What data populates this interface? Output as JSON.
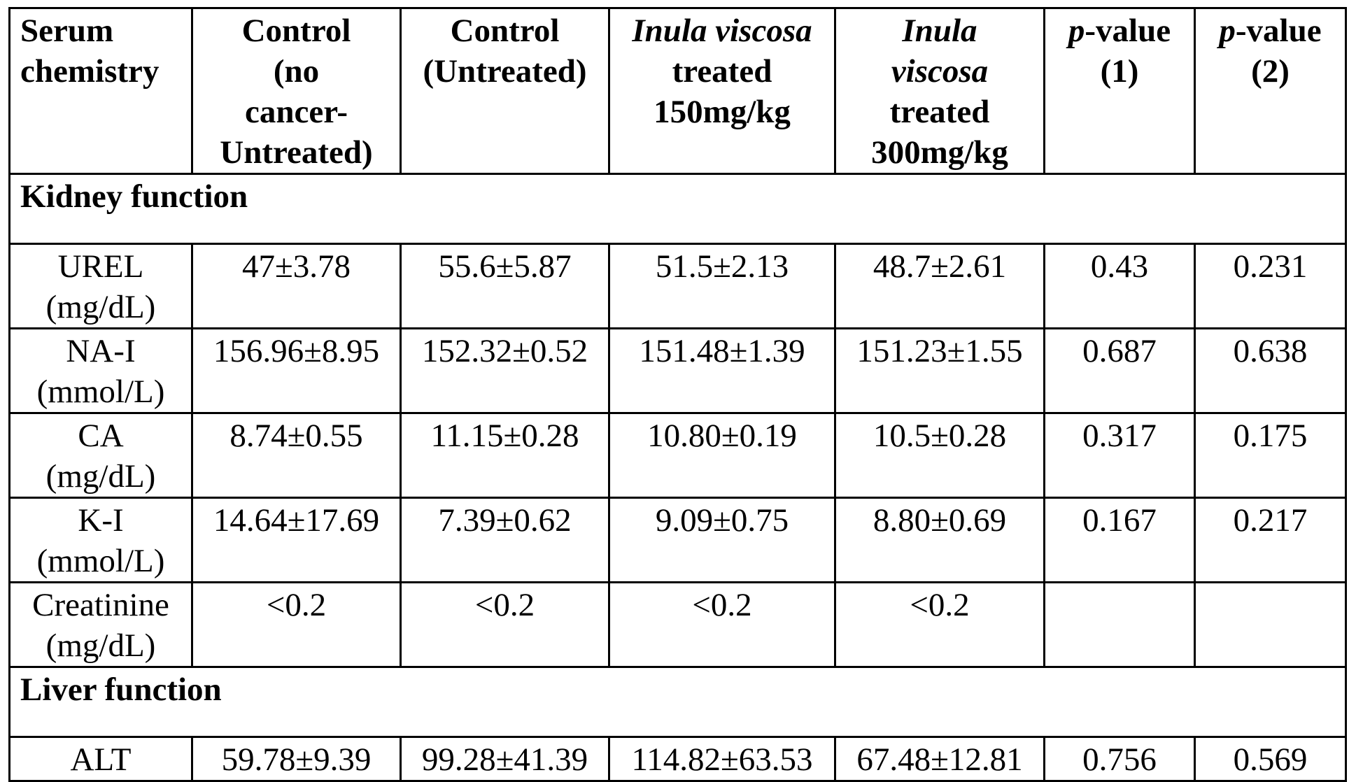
{
  "table": {
    "headers": {
      "serum_chemistry": [
        "Serum",
        "chemistry"
      ],
      "control_no_cancer": [
        "Control",
        "(no",
        "cancer-",
        "Untreated)"
      ],
      "control_untreated": [
        "Control",
        "(Untreated)"
      ],
      "iv_150": {
        "species": "Inula viscosa",
        "rest": [
          "treated",
          "150mg/kg"
        ]
      },
      "iv_300": {
        "genus": "Inula",
        "species": "viscosa",
        "rest": [
          "treated",
          "300mg/kg"
        ]
      },
      "p1": {
        "p": "p",
        "suffix": "-value",
        "num": "(1)"
      },
      "p2": {
        "p": "p",
        "suffix": "-value",
        "num": "(2)"
      }
    },
    "sections": [
      {
        "title": "Kidney function",
        "rows": [
          {
            "name": "UREL",
            "unit": "(mg/dL)",
            "values": [
              "47±3.78",
              "55.6±5.87",
              "51.5±2.13",
              "48.7±2.61",
              "0.43",
              "0.231"
            ]
          },
          {
            "name": "NA-I",
            "unit": "(mmol/L)",
            "values": [
              "156.96±8.95",
              "152.32±0.52",
              "151.48±1.39",
              "151.23±1.55",
              "0.687",
              "0.638"
            ]
          },
          {
            "name": "CA",
            "unit": "(mg/dL)",
            "values": [
              "8.74±0.55",
              "11.15±0.28",
              "10.80±0.19",
              "10.5±0.28",
              "0.317",
              "0.175"
            ]
          },
          {
            "name": "K-I",
            "unit": "(mmol/L)",
            "values": [
              "14.64±17.69",
              "7.39±0.62",
              "9.09±0.75",
              "8.80±0.69",
              "0.167",
              "0.217"
            ]
          },
          {
            "name": "Creatinine",
            "unit": "(mg/dL)",
            "values": [
              "<0.2",
              "<0.2",
              "<0.2",
              "<0.2",
              "",
              ""
            ]
          }
        ]
      },
      {
        "title": "Liver function",
        "rows": [
          {
            "name": "ALT",
            "unit": "",
            "values": [
              "59.78±9.39",
              "99.28±41.39",
              "114.82±63.53",
              "67.48±12.81",
              "0.756",
              "0.569"
            ]
          }
        ]
      }
    ]
  }
}
